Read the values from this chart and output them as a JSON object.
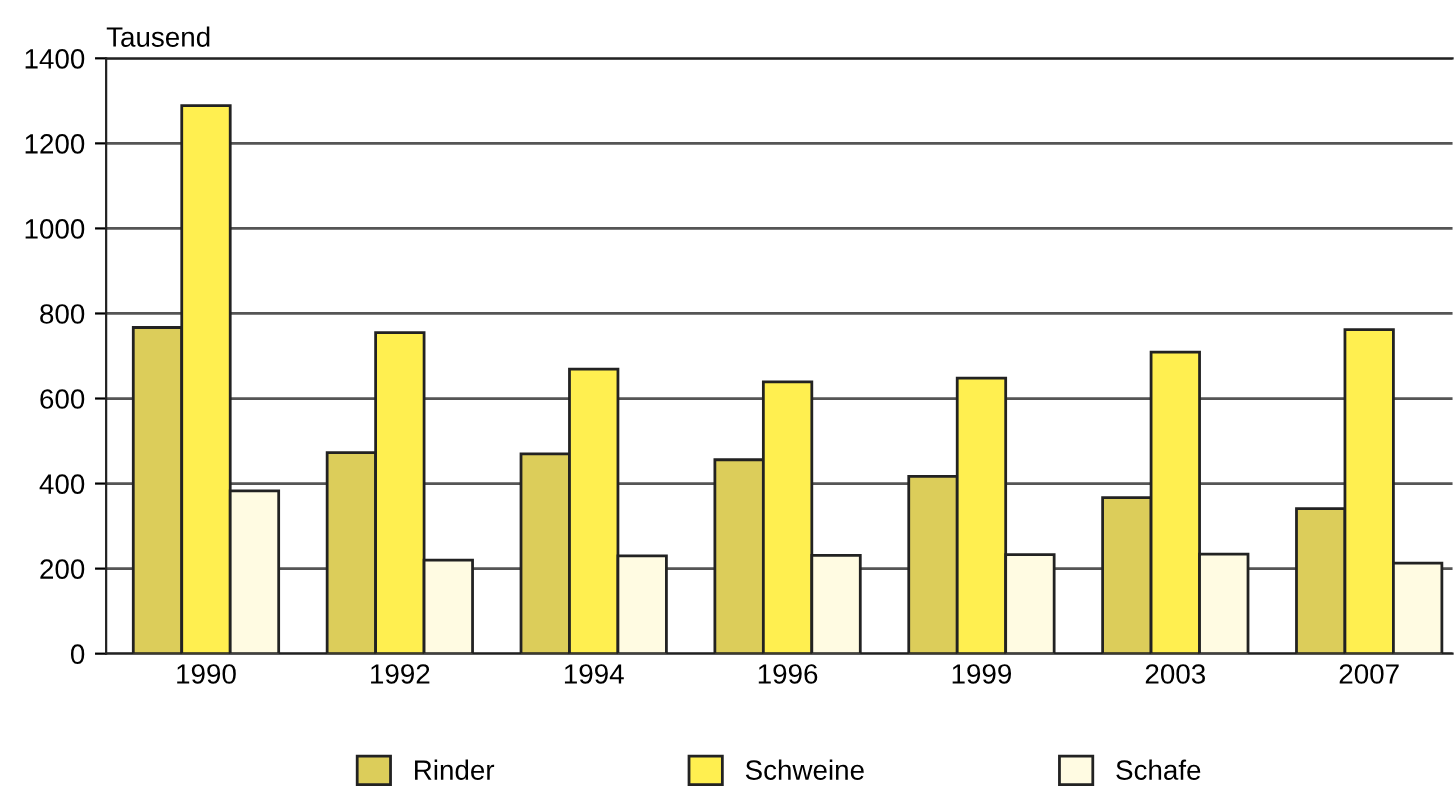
{
  "chart_data": {
    "type": "bar",
    "ylabel": "Tausend",
    "categories": [
      "1990",
      "1992",
      "1994",
      "1996",
      "1999",
      "2003",
      "2007"
    ],
    "series": [
      {
        "name": "Rinder",
        "color": "#dccd5a",
        "values": [
          767,
          473,
          470,
          456,
          417,
          367,
          341
        ]
      },
      {
        "name": "Schweine",
        "color": "#ffef50",
        "values": [
          1289,
          755,
          669,
          639,
          648,
          709,
          762
        ]
      },
      {
        "name": "Schafe",
        "color": "#fffbe2",
        "values": [
          383,
          220,
          230,
          231,
          233,
          234,
          213
        ]
      }
    ],
    "ylim": [
      0,
      1400
    ],
    "yticks": [
      0,
      200,
      400,
      600,
      800,
      1000,
      1200,
      1400
    ],
    "grid": "y",
    "legend": "bottom"
  }
}
